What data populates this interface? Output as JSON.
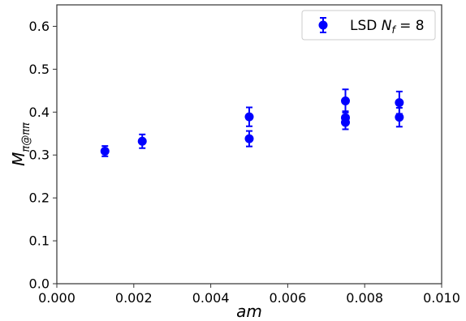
{
  "chart_data": {
    "type": "scatter",
    "xlabel": "am",
    "ylabel": {
      "base": "M",
      "sub": "π@ππ"
    },
    "xlim": [
      0.0,
      0.01
    ],
    "ylim": [
      0.0,
      0.65
    ],
    "xticks": [
      "0.000",
      "0.002",
      "0.004",
      "0.006",
      "0.008",
      "0.010"
    ],
    "yticks": [
      "0.0",
      "0.1",
      "0.2",
      "0.3",
      "0.4",
      "0.5",
      "0.6"
    ],
    "grid": false,
    "legend_position": "top-right",
    "color": "#0000ff",
    "series": [
      {
        "name": {
          "pre": "LSD ",
          "italic": "N",
          "sub": "f",
          "post": " = 8"
        },
        "points": [
          {
            "x": 0.00125,
            "y": 0.309,
            "err": 0.012
          },
          {
            "x": 0.00222,
            "y": 0.332,
            "err": 0.016
          },
          {
            "x": 0.005,
            "y": 0.389,
            "err": 0.022
          },
          {
            "x": 0.005,
            "y": 0.338,
            "err": 0.018
          },
          {
            "x": 0.0075,
            "y": 0.426,
            "err": 0.027
          },
          {
            "x": 0.0075,
            "y": 0.387,
            "err": 0.015
          },
          {
            "x": 0.0075,
            "y": 0.376,
            "err": 0.016
          },
          {
            "x": 0.0089,
            "y": 0.422,
            "err": 0.026
          },
          {
            "x": 0.0089,
            "y": 0.388,
            "err": 0.022
          }
        ]
      }
    ]
  }
}
